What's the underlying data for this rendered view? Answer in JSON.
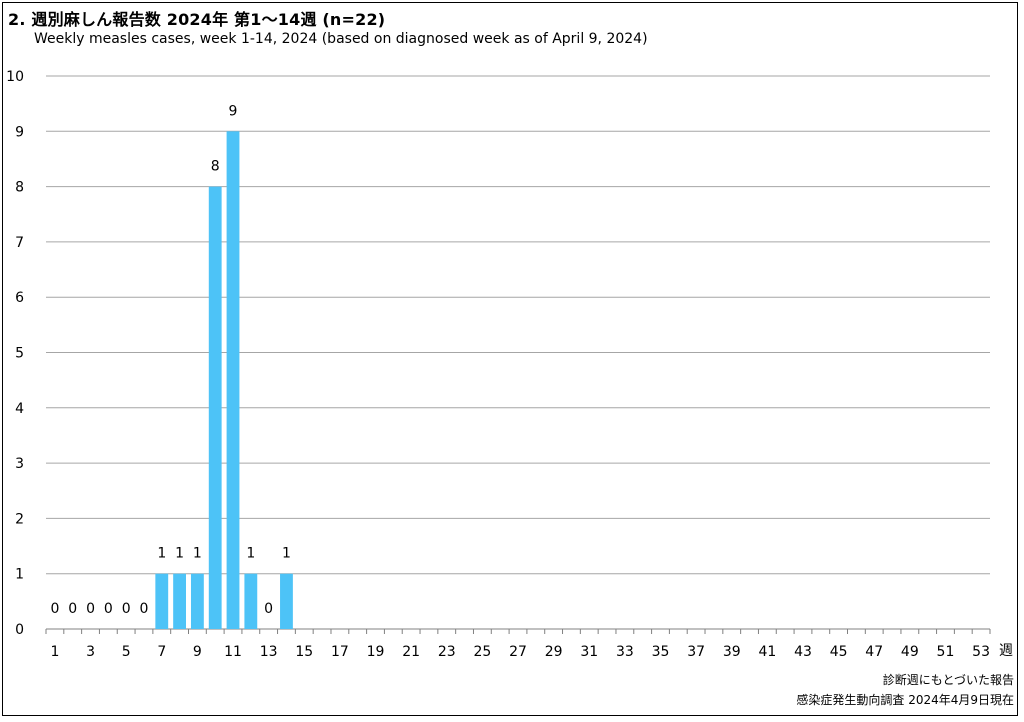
{
  "page": {
    "title": "2. 週別麻しん報告数  2024年 第1〜14週 (n=22)",
    "subtitle": "Weekly measles cases, week 1-14, 2024 (based on diagnosed week as of April 9, 2024)",
    "footnote1": "診断週にもとづいた報告",
    "footnote2": "感染症発生動向調査 2024年4月9日現在"
  },
  "chart_data": {
    "type": "bar",
    "bar_color": "#4dc3f7",
    "grid": true,
    "x_unit_label": "週",
    "ylim": [
      0,
      10
    ],
    "yticks": [
      0,
      1,
      2,
      3,
      4,
      5,
      6,
      7,
      8,
      9,
      10
    ],
    "week_range": [
      1,
      53
    ],
    "xtick_labels": [
      1,
      3,
      5,
      7,
      9,
      11,
      13,
      15,
      17,
      19,
      21,
      23,
      25,
      27,
      29,
      31,
      33,
      35,
      37,
      39,
      41,
      43,
      45,
      47,
      49,
      51,
      53
    ],
    "weeks": [
      1,
      2,
      3,
      4,
      5,
      6,
      7,
      8,
      9,
      10,
      11,
      12,
      13,
      14
    ],
    "values": [
      0,
      0,
      0,
      0,
      0,
      0,
      1,
      1,
      1,
      8,
      9,
      1,
      0,
      1
    ]
  }
}
